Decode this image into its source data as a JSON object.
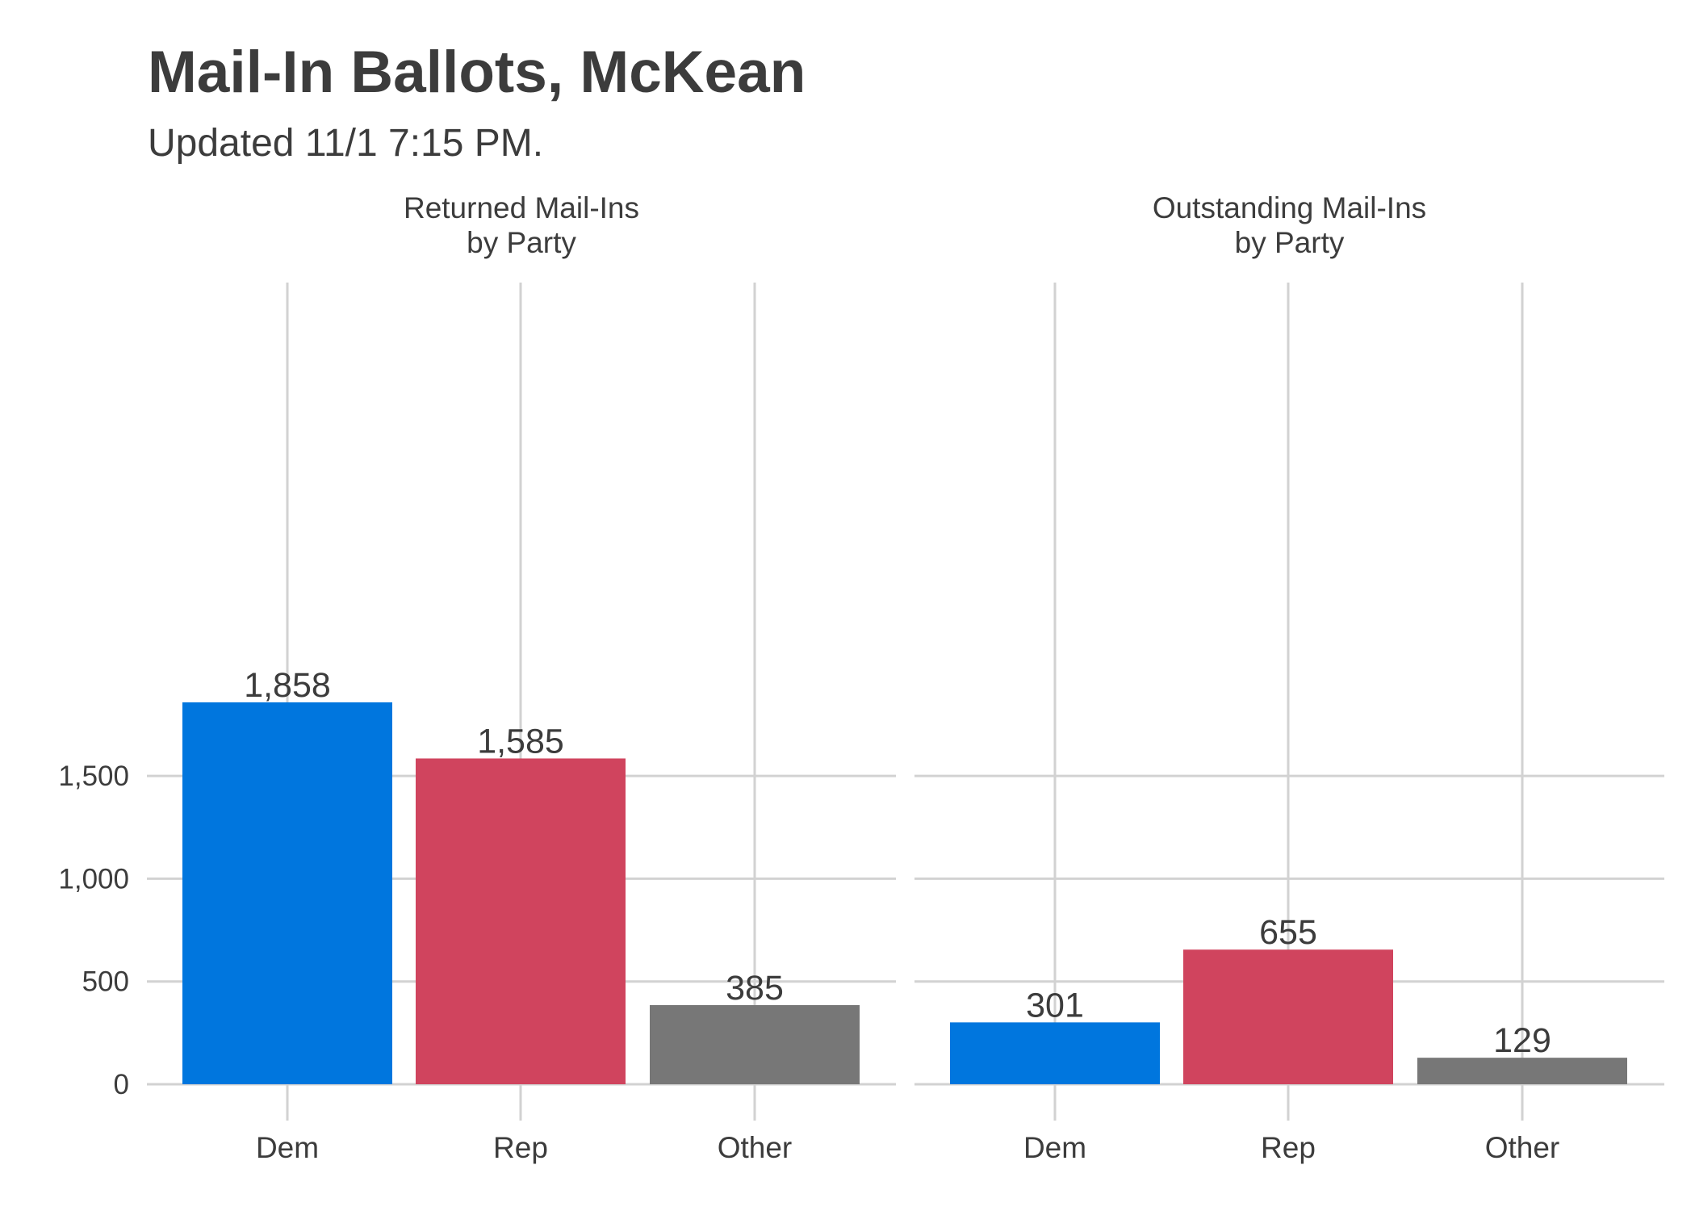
{
  "title": "Mail-In Ballots, McKean",
  "subtitle": "Updated 11/1 7:15 PM.",
  "chart_data": [
    {
      "type": "bar",
      "title": "Returned Mail-Ins\nby Party",
      "categories": [
        "Dem",
        "Rep",
        "Other"
      ],
      "values": [
        1858,
        1585,
        385
      ],
      "value_labels": [
        "1,858",
        "1,585",
        "385"
      ],
      "colors": [
        "#0076DE",
        "#D0445E",
        "#777777"
      ],
      "ylim": [
        0,
        1900
      ],
      "yticks": [
        0,
        500,
        1000,
        1500
      ],
      "ytick_labels": [
        "0",
        "500",
        "1,000",
        "1,500"
      ],
      "grid": true
    },
    {
      "type": "bar",
      "title": "Outstanding Mail-Ins\nby Party",
      "categories": [
        "Dem",
        "Rep",
        "Other"
      ],
      "values": [
        301,
        655,
        129
      ],
      "value_labels": [
        "301",
        "655",
        "129"
      ],
      "colors": [
        "#0076DE",
        "#D0445E",
        "#777777"
      ],
      "ylim": [
        0,
        1900
      ],
      "yticks": [
        0,
        500,
        1000,
        1500
      ],
      "grid": true
    }
  ]
}
